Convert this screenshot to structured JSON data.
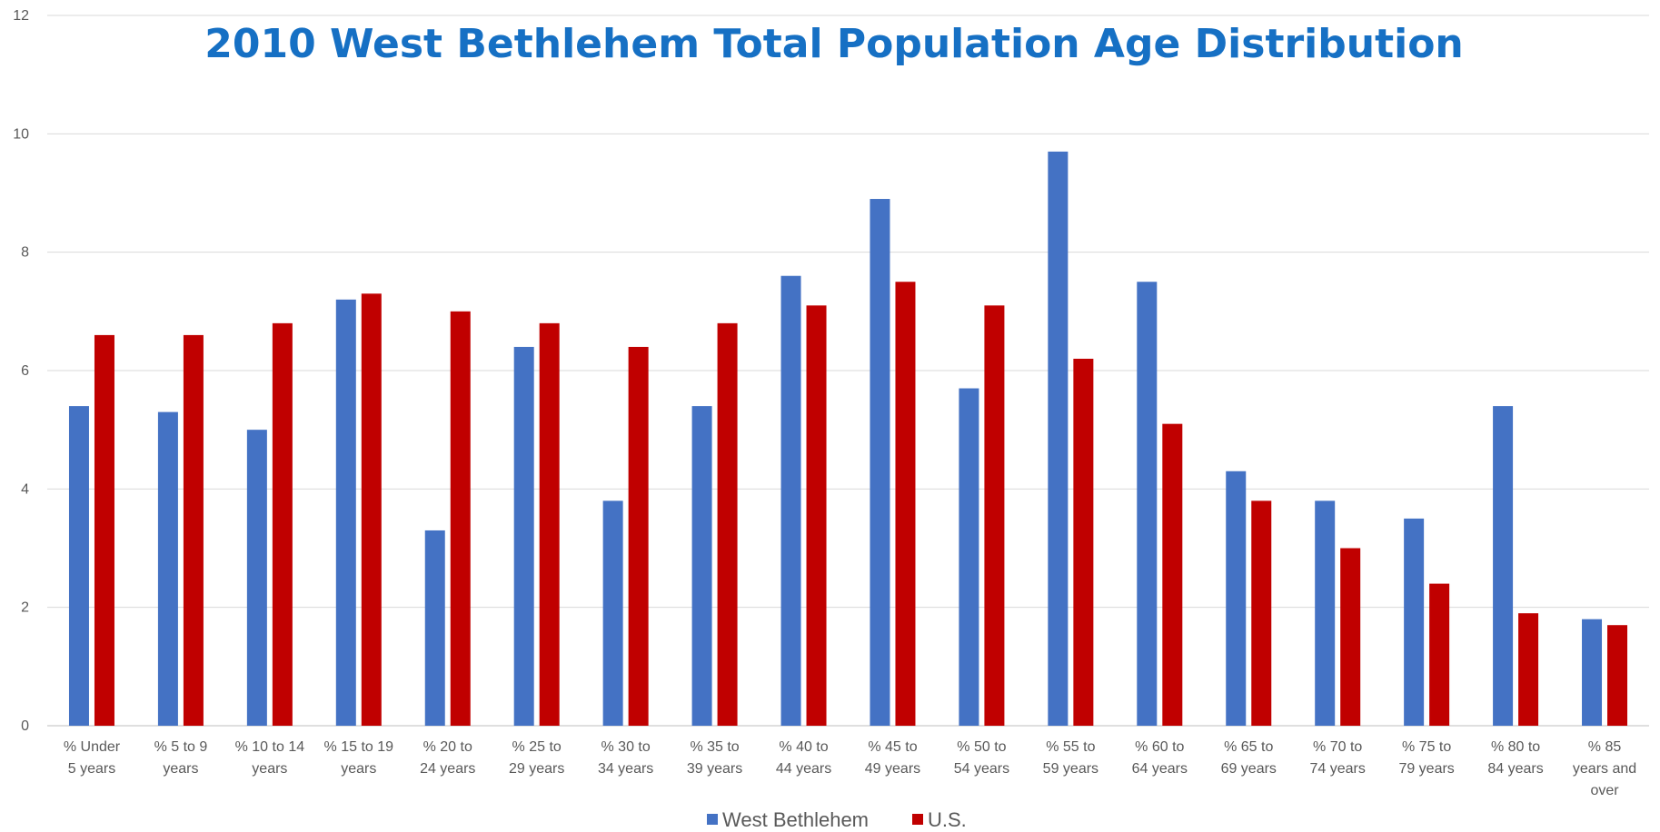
{
  "chart_data": {
    "type": "bar",
    "title": "2010 West Bethlehem Total Population Age Distribution",
    "xlabel": "",
    "ylabel": "",
    "ylim": [
      0,
      12
    ],
    "yticks": [
      "0",
      "2",
      "4",
      "6",
      "8",
      "10",
      "12"
    ],
    "grid": true,
    "legend_position": "bottom",
    "categories": [
      [
        "% Under",
        "5 years"
      ],
      [
        "% 5 to 9",
        "years"
      ],
      [
        "% 10 to 14",
        "years"
      ],
      [
        "% 15 to 19",
        "years"
      ],
      [
        "% 20 to",
        "24 years"
      ],
      [
        "% 25 to",
        "29 years"
      ],
      [
        "% 30 to",
        "34 years"
      ],
      [
        "% 35 to",
        "39 years"
      ],
      [
        "% 40 to",
        "44 years"
      ],
      [
        "% 45 to",
        "49 years"
      ],
      [
        "% 50 to",
        "54 years"
      ],
      [
        "% 55 to",
        "59 years"
      ],
      [
        "% 60 to",
        "64 years"
      ],
      [
        "% 65 to",
        "69 years"
      ],
      [
        "% 70 to",
        "74 years"
      ],
      [
        "% 75 to",
        "79 years"
      ],
      [
        "% 80 to",
        "84 years"
      ],
      [
        "% 85",
        "years and",
        "over"
      ]
    ],
    "series": [
      {
        "name": "West Bethlehem",
        "color": "#4472c4",
        "values": [
          5.4,
          5.3,
          5.0,
          7.2,
          3.3,
          6.4,
          3.8,
          5.4,
          7.6,
          8.9,
          5.7,
          9.7,
          7.5,
          4.3,
          3.8,
          3.5,
          5.4,
          1.8
        ]
      },
      {
        "name": "U.S.",
        "color": "#c00000",
        "values": [
          6.6,
          6.6,
          6.8,
          7.3,
          7.0,
          6.8,
          6.4,
          6.8,
          7.1,
          7.5,
          7.1,
          6.2,
          5.1,
          3.8,
          3.0,
          2.4,
          1.9,
          1.7
        ]
      }
    ]
  }
}
